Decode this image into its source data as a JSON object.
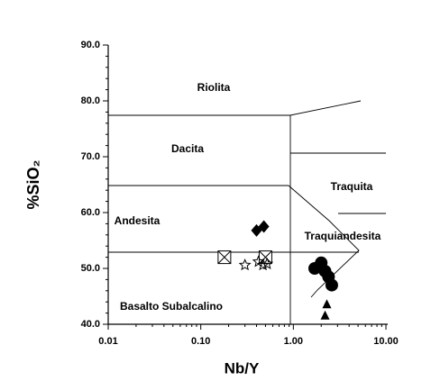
{
  "chart_data": {
    "type": "scatter",
    "x_label": "Nb/Y",
    "y_label": "%SiO₂",
    "xscale": "log",
    "xlim": [
      0.01,
      10
    ],
    "xticks": [
      0.01,
      {
        "value": 0.1,
        "label": "0.10"
      },
      {
        "value": 1,
        "label": "1.00"
      },
      {
        "value": 10,
        "label": "10.00"
      }
    ],
    "ylim": [
      40,
      90
    ],
    "yticks": [
      {
        "value": 40,
        "label": "40.0"
      },
      {
        "value": 50,
        "label": "50.0"
      },
      {
        "value": 60,
        "label": "60.0"
      },
      {
        "value": 70,
        "label": "70.0"
      },
      {
        "value": 80,
        "label": "80.0"
      },
      {
        "value": 90,
        "label": "90.0"
      }
    ],
    "annotations": [
      "Riolita",
      "Dacita",
      "Andesita",
      "Traquita",
      "Traquiandesita",
      "Basalto Subalcalino"
    ],
    "series": [
      {
        "marker": "diamond",
        "color": "#000000",
        "x": [
          0.4,
          0.48
        ],
        "values": [
          56.8,
          57.5
        ]
      },
      {
        "marker": "boxcross",
        "color": "#000000",
        "x": [
          0.18,
          0.5
        ],
        "values": [
          52,
          52
        ]
      },
      {
        "marker": "star",
        "color": "#000000",
        "x": [
          0.3,
          0.42,
          0.47,
          0.52
        ],
        "values": [
          50.6,
          51.2,
          50.6,
          50.8
        ]
      },
      {
        "marker": "circle",
        "color": "#000000",
        "x": [
          1.7,
          2.0,
          2.2,
          2.4,
          2.6,
          1.9
        ],
        "values": [
          50,
          51,
          49.5,
          48.5,
          47,
          50.3
        ]
      },
      {
        "marker": "triangle",
        "color": "#000000",
        "x": [
          2.3,
          2.2
        ],
        "values": [
          43.5,
          41.5
        ]
      }
    ]
  }
}
